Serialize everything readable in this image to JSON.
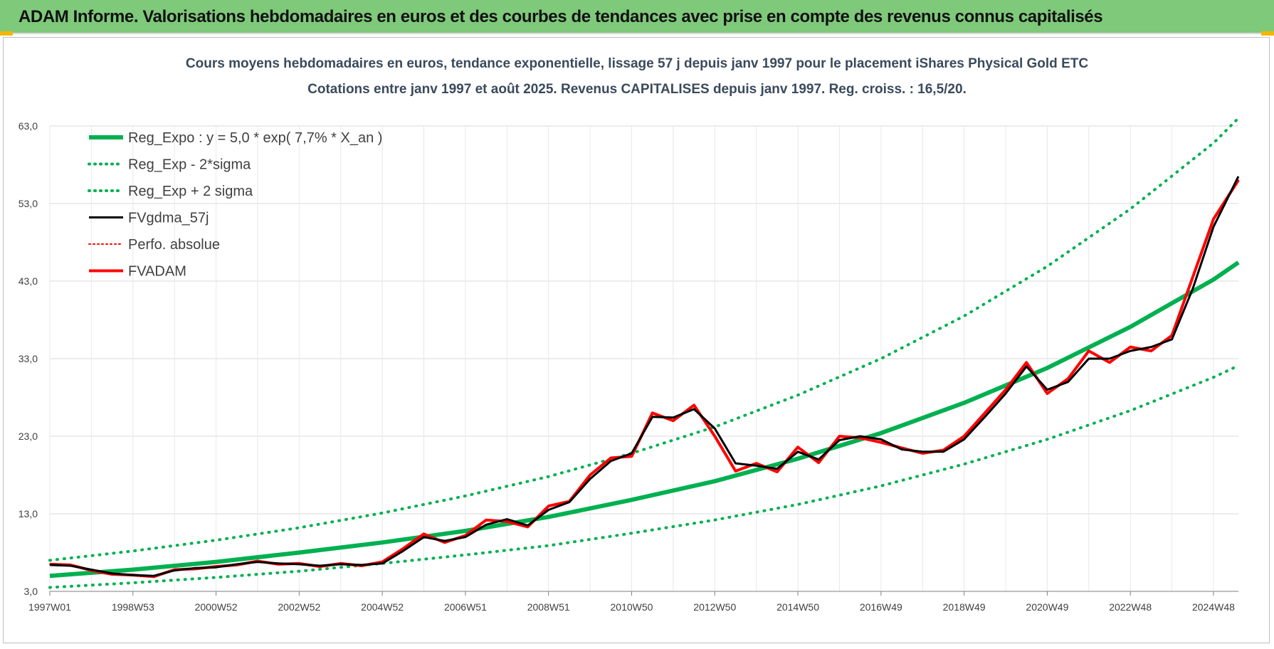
{
  "header": {
    "title": "ADAM Informe. Valorisations hebdomadaires en euros et des courbes de tendances avec prise en compte des revenus connus capitalisés"
  },
  "colors": {
    "banner": "#7ec97a",
    "trend": "#00b050",
    "smooth": "#000000",
    "price": "#ff0000",
    "grid": "#d9d9d9",
    "title": "#3a4a5c"
  },
  "chart_data": {
    "type": "line",
    "title": "Cours moyens hebdomadaires en euros, tendance exponentielle, lissage 57 j depuis janv 1997 pour le placement iShares Physical Gold ETC",
    "subtitle": "Cotations entre janv 1997 et août 2025. Revenus CAPITALISES depuis janv 1997. Reg. croiss. : 16,5/20.",
    "xlabel": "",
    "ylabel": "",
    "x_range": [
      1997.0,
      2025.6
    ],
    "ylim": [
      3,
      63
    ],
    "yticks": [
      "3,0",
      "13,0",
      "23,0",
      "33,0",
      "43,0",
      "53,0",
      "63,0"
    ],
    "xticks": [
      {
        "label": "1997W01",
        "x": 1997.0
      },
      {
        "label": "1998W53",
        "x": 1999.0
      },
      {
        "label": "2000W52",
        "x": 2001.0
      },
      {
        "label": "2002W52",
        "x": 2003.0
      },
      {
        "label": "2004W52",
        "x": 2005.0
      },
      {
        "label": "2006W51",
        "x": 2007.0
      },
      {
        "label": "2008W51",
        "x": 2009.0
      },
      {
        "label": "2010W50",
        "x": 2011.0
      },
      {
        "label": "2012W50",
        "x": 2013.0
      },
      {
        "label": "2014W50",
        "x": 2015.0
      },
      {
        "label": "2016W49",
        "x": 2017.0
      },
      {
        "label": "2018W49",
        "x": 2019.0
      },
      {
        "label": "2020W49",
        "x": 2021.0
      },
      {
        "label": "2022W48",
        "x": 2023.0
      },
      {
        "label": "2024W48",
        "x": 2025.0
      }
    ],
    "grid": true,
    "legend_position": "top-left",
    "series": [
      {
        "name": "Reg_Expo : y = 5,0 * exp( 7,7% * X_an )",
        "style": "solid",
        "color": "#00b050",
        "x": [
          1997,
          1999,
          2001,
          2003,
          2005,
          2007,
          2009,
          2011,
          2013,
          2015,
          2017,
          2019,
          2021,
          2023,
          2025,
          2025.6
        ],
        "y": [
          5.0,
          5.8,
          6.8,
          8.0,
          9.3,
          10.8,
          12.6,
          14.8,
          17.2,
          20.1,
          23.4,
          27.3,
          31.8,
          37.1,
          43.2,
          45.4
        ]
      },
      {
        "name": "Reg_Exp - 2*sigma",
        "style": "dotted",
        "color": "#00b050",
        "x": [
          1997,
          1999,
          2001,
          2003,
          2005,
          2007,
          2009,
          2011,
          2013,
          2015,
          2017,
          2019,
          2021,
          2023,
          2025,
          2025.6
        ],
        "y": [
          3.5,
          4.1,
          4.8,
          5.6,
          6.6,
          7.7,
          8.9,
          10.5,
          12.2,
          14.2,
          16.6,
          19.4,
          22.6,
          26.3,
          30.6,
          32.1
        ]
      },
      {
        "name": "Reg_Exp + 2 sigma",
        "style": "dotted",
        "color": "#00b050",
        "x": [
          1997,
          1999,
          2001,
          2003,
          2005,
          2007,
          2009,
          2011,
          2013,
          2015,
          2017,
          2019,
          2021,
          2023,
          2025,
          2025.6
        ],
        "y": [
          7.0,
          8.2,
          9.6,
          11.2,
          13.1,
          15.3,
          17.8,
          20.8,
          24.2,
          28.3,
          33.0,
          38.5,
          44.9,
          52.3,
          60.8,
          64.0
        ]
      },
      {
        "name": "FVgdma_57j",
        "style": "solid",
        "color": "#000000",
        "x": [
          1997,
          1997.5,
          1998,
          1998.5,
          1999,
          1999.5,
          2000,
          2000.5,
          2001,
          2001.5,
          2002,
          2002.5,
          2003,
          2003.5,
          2004,
          2004.5,
          2005,
          2005.5,
          2006,
          2006.5,
          2007,
          2007.5,
          2008,
          2008.5,
          2009,
          2009.5,
          2010,
          2010.5,
          2011,
          2011.5,
          2012,
          2012.5,
          2013,
          2013.5,
          2014,
          2014.5,
          2015,
          2015.5,
          2016,
          2016.5,
          2017,
          2017.5,
          2018,
          2018.5,
          2019,
          2019.5,
          2020,
          2020.5,
          2021,
          2021.5,
          2022,
          2022.5,
          2023,
          2023.5,
          2024,
          2024.5,
          2025,
          2025.6
        ],
        "y": [
          6.4,
          6.3,
          5.8,
          5.3,
          5.1,
          5.0,
          5.7,
          6.0,
          6.1,
          6.5,
          6.8,
          6.6,
          6.5,
          6.3,
          6.5,
          6.4,
          6.6,
          8.2,
          10.0,
          9.5,
          10.0,
          11.6,
          12.3,
          11.5,
          13.5,
          14.5,
          17.5,
          19.8,
          20.8,
          25.5,
          25.4,
          26.5,
          24.0,
          19.5,
          19.2,
          18.8,
          21.0,
          20.0,
          22.5,
          23.0,
          22.6,
          21.3,
          21.0,
          21.0,
          22.6,
          25.5,
          28.5,
          32.0,
          29.0,
          30.0,
          33.0,
          33.0,
          34.0,
          34.5,
          35.5,
          42.0,
          50.0,
          56.5
        ]
      },
      {
        "name": "Perfo. absolue",
        "style": "dotted",
        "color": "#ff0000",
        "x": [
          1997,
          1997.5,
          1998,
          1998.5,
          1999,
          1999.5,
          2000,
          2000.5,
          2001,
          2001.5,
          2002,
          2002.5,
          2003,
          2003.5,
          2004,
          2004.5,
          2005,
          2005.5,
          2006,
          2006.5,
          2007,
          2007.5,
          2008,
          2008.5,
          2009,
          2009.5,
          2010,
          2010.5,
          2011,
          2011.5,
          2012,
          2012.5,
          2013,
          2013.5,
          2014,
          2014.5,
          2015,
          2015.5,
          2016,
          2016.5,
          2017,
          2017.5,
          2018,
          2018.5,
          2019,
          2019.5,
          2020,
          2020.5,
          2021,
          2021.5,
          2022,
          2022.5,
          2023,
          2023.5,
          2024,
          2024.5,
          2025,
          2025.6
        ],
        "y": [
          6.5,
          6.4,
          5.7,
          5.2,
          5.1,
          4.9,
          5.8,
          5.9,
          6.2,
          6.4,
          6.9,
          6.5,
          6.6,
          6.2,
          6.6,
          6.3,
          6.8,
          8.5,
          10.4,
          9.3,
          10.2,
          12.2,
          12.0,
          11.3,
          14.0,
          14.6,
          18.0,
          20.2,
          20.4,
          26.0,
          25.0,
          27.0,
          23.0,
          18.5,
          19.5,
          18.4,
          21.6,
          19.6,
          23.0,
          22.8,
          22.2,
          21.5,
          20.8,
          21.2,
          23.0,
          26.0,
          29.0,
          32.5,
          28.5,
          30.4,
          34.0,
          32.5,
          34.5,
          34.0,
          36.0,
          43.5,
          51.0,
          56.0
        ]
      },
      {
        "name": "FVADAM",
        "style": "solid",
        "color": "#ff0000",
        "x": [
          1997,
          1997.5,
          1998,
          1998.5,
          1999,
          1999.5,
          2000,
          2000.5,
          2001,
          2001.5,
          2002,
          2002.5,
          2003,
          2003.5,
          2004,
          2004.5,
          2005,
          2005.5,
          2006,
          2006.5,
          2007,
          2007.5,
          2008,
          2008.5,
          2009,
          2009.5,
          2010,
          2010.5,
          2011,
          2011.5,
          2012,
          2012.5,
          2013,
          2013.5,
          2014,
          2014.5,
          2015,
          2015.5,
          2016,
          2016.5,
          2017,
          2017.5,
          2018,
          2018.5,
          2019,
          2019.5,
          2020,
          2020.5,
          2021,
          2021.5,
          2022,
          2022.5,
          2023,
          2023.5,
          2024,
          2024.5,
          2025,
          2025.6
        ],
        "y": [
          6.5,
          6.4,
          5.7,
          5.2,
          5.1,
          4.9,
          5.8,
          5.9,
          6.2,
          6.4,
          6.9,
          6.5,
          6.6,
          6.2,
          6.6,
          6.3,
          6.8,
          8.5,
          10.4,
          9.3,
          10.2,
          12.2,
          12.0,
          11.3,
          14.0,
          14.6,
          18.0,
          20.2,
          20.4,
          26.0,
          25.0,
          27.0,
          23.0,
          18.5,
          19.5,
          18.4,
          21.6,
          19.6,
          23.0,
          22.8,
          22.2,
          21.5,
          20.8,
          21.2,
          23.0,
          26.0,
          29.0,
          32.5,
          28.5,
          30.4,
          34.0,
          32.5,
          34.5,
          34.0,
          36.0,
          43.5,
          51.0,
          56.0
        ]
      }
    ]
  }
}
